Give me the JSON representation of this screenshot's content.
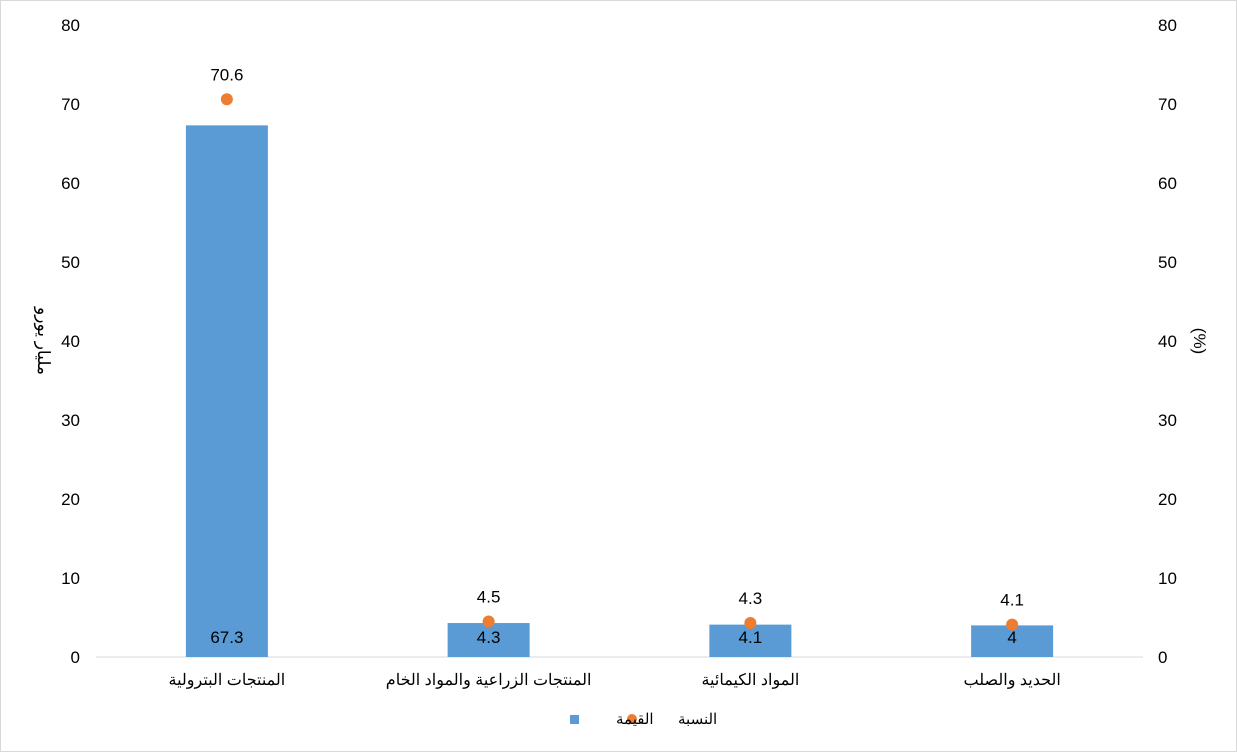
{
  "chart_data": {
    "type": "bar",
    "categories": [
      "المنتجات البترولية",
      "المنتجات الزراعية والمواد الخام",
      "المواد الكيمائية",
      "الحديد والصلب"
    ],
    "series": [
      {
        "name": "القيمة",
        "type": "bar",
        "axis": "left",
        "color": "#5b9bd5",
        "values": [
          67.3,
          4.3,
          4.1,
          4
        ]
      },
      {
        "name": "النسبة",
        "type": "scatter",
        "axis": "right",
        "color": "#ed7d31",
        "values": [
          70.6,
          4.5,
          4.3,
          4.1
        ]
      }
    ],
    "ylabel": "مليار يورو",
    "y2label": "(%)",
    "ylim": [
      0,
      80
    ],
    "y2lim": [
      0,
      80
    ],
    "yticks": [
      0,
      10,
      20,
      30,
      40,
      50,
      60,
      70,
      80
    ],
    "y2ticks": [
      0,
      10,
      20,
      30,
      40,
      50,
      60,
      70,
      80
    ],
    "grid": false,
    "legend_position": "bottom-center",
    "legend_order": [
      "النسبة",
      "القيمة"
    ]
  }
}
